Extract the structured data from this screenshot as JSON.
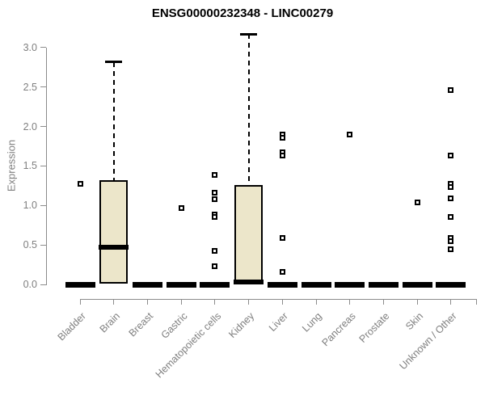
{
  "chart_data": {
    "type": "boxplot",
    "title": "ENSG00000232348 - LINC00279",
    "ylabel": "Expression",
    "xlabel": "",
    "ylim": [
      0,
      3.2
    ],
    "yticks": [
      0,
      0.5,
      1,
      1.5,
      2,
      2.5,
      3
    ],
    "ytick_labels": [
      "0.0",
      "0.5",
      "1.0",
      "1.5",
      "2.0",
      "2.5",
      "3.0"
    ],
    "grid": false,
    "legend": null,
    "colors": {
      "box_fill": "#ece6ca",
      "box_border": "#000000",
      "axis": "#8c8c8c",
      "tick_text": "#7f7f7f",
      "title_text": "#000000"
    },
    "categories": [
      "Bladder",
      "Brain",
      "Breast",
      "Gastric",
      "Hematopoietic cells",
      "Kidney",
      "Liver",
      "Lung",
      "Pancreas",
      "Prostate",
      "Skin",
      "Unknown / Other"
    ],
    "series": [
      {
        "category": "Bladder",
        "flat": true,
        "median": 0,
        "outliers": [
          1.27
        ]
      },
      {
        "category": "Brain",
        "flat": false,
        "q1": 0.01,
        "median": 0.47,
        "q3": 1.32,
        "whisker_low": 0.01,
        "whisker_high": 2.82,
        "outliers": []
      },
      {
        "category": "Breast",
        "flat": true,
        "median": 0,
        "outliers": []
      },
      {
        "category": "Gastric",
        "flat": true,
        "median": 0,
        "outliers": [
          0.97
        ]
      },
      {
        "category": "Hematopoietic cells",
        "flat": true,
        "median": 0,
        "outliers": [
          1.39,
          1.16,
          1.08,
          0.89,
          0.86,
          0.43,
          0.23
        ]
      },
      {
        "category": "Kidney",
        "flat": false,
        "q1": 0.01,
        "median": 0.03,
        "q3": 1.26,
        "whisker_low": 0.01,
        "whisker_high": 3.17,
        "outliers": []
      },
      {
        "category": "Liver",
        "flat": true,
        "median": 0,
        "outliers": [
          1.9,
          1.86,
          1.67,
          1.63,
          0.59,
          0.16
        ]
      },
      {
        "category": "Lung",
        "flat": true,
        "median": 0,
        "outliers": []
      },
      {
        "category": "Pancreas",
        "flat": true,
        "median": 0,
        "outliers": [
          1.9
        ]
      },
      {
        "category": "Prostate",
        "flat": true,
        "median": 0,
        "outliers": []
      },
      {
        "category": "Skin",
        "flat": true,
        "median": 0,
        "outliers": [
          1.04
        ]
      },
      {
        "category": "Unknown / Other",
        "flat": true,
        "median": 0,
        "outliers": [
          2.46,
          1.63,
          1.27,
          1.23,
          1.09,
          0.85,
          0.59,
          0.55,
          0.45
        ]
      }
    ]
  }
}
